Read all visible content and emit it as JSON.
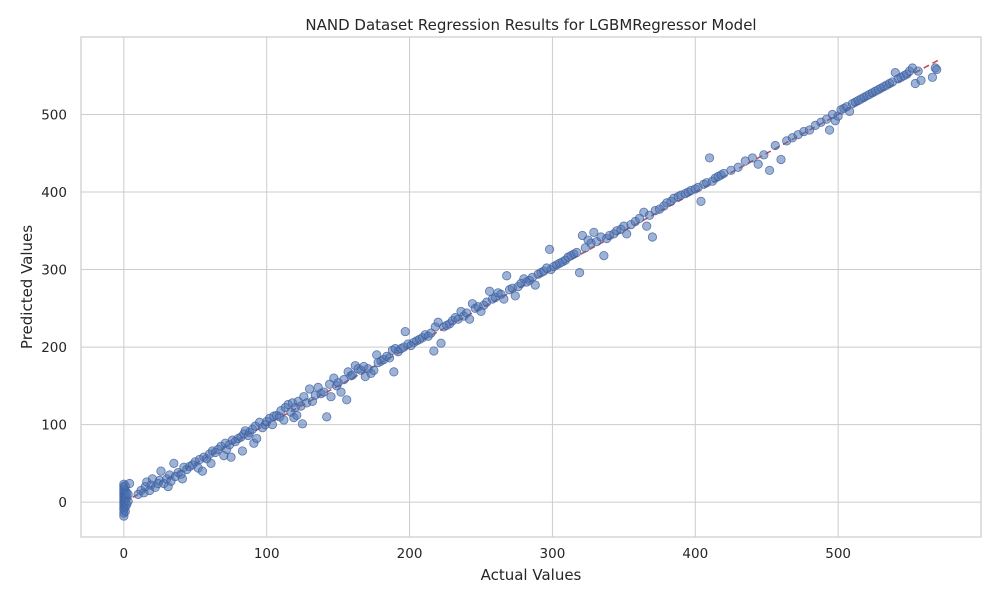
{
  "chart_data": {
    "type": "scatter",
    "title": "NAND Dataset Regression Results for LGBMRegressor Model",
    "xlabel": "Actual Values",
    "ylabel": "Predicted Values",
    "xlim": [
      -30,
      600
    ],
    "ylim": [
      -45,
      600
    ],
    "xticks": [
      0,
      100,
      200,
      300,
      400,
      500
    ],
    "yticks": [
      0,
      100,
      200,
      300,
      400,
      500
    ],
    "grid": true,
    "reference_line": {
      "style": "dashed",
      "color": "#c44e52",
      "from": [
        0,
        0
      ],
      "to": [
        570,
        570
      ]
    },
    "point_color": "#4c72b0",
    "points": [
      [
        0,
        -18
      ],
      [
        0,
        -14
      ],
      [
        0,
        -10
      ],
      [
        0,
        -7
      ],
      [
        0,
        -4
      ],
      [
        0,
        -1
      ],
      [
        0,
        2
      ],
      [
        0,
        5
      ],
      [
        0,
        8
      ],
      [
        0,
        11
      ],
      [
        0,
        14
      ],
      [
        0,
        17
      ],
      [
        0,
        20
      ],
      [
        0,
        23
      ],
      [
        1,
        -12
      ],
      [
        1,
        -6
      ],
      [
        1,
        0
      ],
      [
        1,
        4
      ],
      [
        1,
        9
      ],
      [
        1,
        15
      ],
      [
        1,
        21
      ],
      [
        2,
        -3
      ],
      [
        2,
        6
      ],
      [
        2,
        12
      ],
      [
        3,
        1
      ],
      [
        3,
        10
      ],
      [
        4,
        24
      ],
      [
        10,
        10
      ],
      [
        12,
        15
      ],
      [
        14,
        12
      ],
      [
        15,
        20
      ],
      [
        16,
        26
      ],
      [
        18,
        15
      ],
      [
        19,
        22
      ],
      [
        20,
        30
      ],
      [
        22,
        19
      ],
      [
        24,
        24
      ],
      [
        25,
        28
      ],
      [
        26,
        40
      ],
      [
        28,
        24
      ],
      [
        30,
        30
      ],
      [
        31,
        20
      ],
      [
        32,
        35
      ],
      [
        33,
        27
      ],
      [
        35,
        50
      ],
      [
        36,
        33
      ],
      [
        38,
        38
      ],
      [
        40,
        36
      ],
      [
        41,
        30
      ],
      [
        42,
        45
      ],
      [
        44,
        42
      ],
      [
        46,
        46
      ],
      [
        48,
        48
      ],
      [
        50,
        52
      ],
      [
        52,
        44
      ],
      [
        53,
        55
      ],
      [
        55,
        40
      ],
      [
        56,
        58
      ],
      [
        58,
        56
      ],
      [
        60,
        62
      ],
      [
        61,
        50
      ],
      [
        62,
        66
      ],
      [
        64,
        64
      ],
      [
        66,
        68
      ],
      [
        68,
        72
      ],
      [
        70,
        60
      ],
      [
        71,
        76
      ],
      [
        72,
        68
      ],
      [
        74,
        74
      ],
      [
        75,
        58
      ],
      [
        76,
        80
      ],
      [
        78,
        78
      ],
      [
        80,
        82
      ],
      [
        82,
        84
      ],
      [
        83,
        66
      ],
      [
        84,
        88
      ],
      [
        85,
        92
      ],
      [
        87,
        86
      ],
      [
        88,
        90
      ],
      [
        90,
        94
      ],
      [
        91,
        76
      ],
      [
        92,
        98
      ],
      [
        93,
        82
      ],
      [
        95,
        103
      ],
      [
        97,
        96
      ],
      [
        99,
        100
      ],
      [
        100,
        104
      ],
      [
        102,
        108
      ],
      [
        104,
        100
      ],
      [
        105,
        111
      ],
      [
        107,
        112
      ],
      [
        109,
        110
      ],
      [
        110,
        118
      ],
      [
        112,
        106
      ],
      [
        113,
        122
      ],
      [
        115,
        126
      ],
      [
        117,
        116
      ],
      [
        118,
        128
      ],
      [
        119,
        109
      ],
      [
        120,
        122
      ],
      [
        121,
        112
      ],
      [
        122,
        130
      ],
      [
        124,
        124
      ],
      [
        125,
        101
      ],
      [
        126,
        136
      ],
      [
        128,
        128
      ],
      [
        130,
        146
      ],
      [
        132,
        130
      ],
      [
        134,
        138
      ],
      [
        136,
        148
      ],
      [
        138,
        140
      ],
      [
        140,
        142
      ],
      [
        142,
        110
      ],
      [
        144,
        152
      ],
      [
        145,
        136
      ],
      [
        147,
        160
      ],
      [
        149,
        150
      ],
      [
        150,
        154
      ],
      [
        152,
        142
      ],
      [
        154,
        158
      ],
      [
        156,
        132
      ],
      [
        157,
        168
      ],
      [
        159,
        163
      ],
      [
        160,
        164
      ],
      [
        162,
        176
      ],
      [
        164,
        172
      ],
      [
        166,
        170
      ],
      [
        168,
        175
      ],
      [
        169,
        162
      ],
      [
        171,
        172
      ],
      [
        173,
        166
      ],
      [
        175,
        170
      ],
      [
        177,
        190
      ],
      [
        178,
        180
      ],
      [
        180,
        182
      ],
      [
        182,
        184
      ],
      [
        184,
        188
      ],
      [
        186,
        186
      ],
      [
        188,
        196
      ],
      [
        189,
        168
      ],
      [
        190,
        198
      ],
      [
        192,
        194
      ],
      [
        194,
        198
      ],
      [
        196,
        200
      ],
      [
        197,
        220
      ],
      [
        199,
        204
      ],
      [
        201,
        202
      ],
      [
        203,
        206
      ],
      [
        205,
        208
      ],
      [
        207,
        210
      ],
      [
        209,
        212
      ],
      [
        211,
        216
      ],
      [
        213,
        214
      ],
      [
        215,
        218
      ],
      [
        217,
        195
      ],
      [
        218,
        226
      ],
      [
        220,
        232
      ],
      [
        222,
        205
      ],
      [
        224,
        226
      ],
      [
        226,
        228
      ],
      [
        228,
        230
      ],
      [
        230,
        234
      ],
      [
        232,
        238
      ],
      [
        234,
        236
      ],
      [
        236,
        246
      ],
      [
        238,
        240
      ],
      [
        240,
        244
      ],
      [
        242,
        236
      ],
      [
        244,
        256
      ],
      [
        246,
        250
      ],
      [
        248,
        252
      ],
      [
        250,
        246
      ],
      [
        252,
        254
      ],
      [
        254,
        258
      ],
      [
        256,
        272
      ],
      [
        258,
        262
      ],
      [
        260,
        264
      ],
      [
        262,
        270
      ],
      [
        264,
        268
      ],
      [
        266,
        262
      ],
      [
        268,
        292
      ],
      [
        270,
        274
      ],
      [
        272,
        276
      ],
      [
        274,
        266
      ],
      [
        276,
        278
      ],
      [
        278,
        282
      ],
      [
        280,
        288
      ],
      [
        282,
        284
      ],
      [
        284,
        286
      ],
      [
        286,
        290
      ],
      [
        288,
        280
      ],
      [
        290,
        294
      ],
      [
        292,
        296
      ],
      [
        294,
        298
      ],
      [
        296,
        302
      ],
      [
        298,
        326
      ],
      [
        299,
        300
      ],
      [
        301,
        304
      ],
      [
        303,
        306
      ],
      [
        305,
        308
      ],
      [
        307,
        310
      ],
      [
        309,
        312
      ],
      [
        311,
        316
      ],
      [
        313,
        318
      ],
      [
        315,
        320
      ],
      [
        317,
        322
      ],
      [
        319,
        296
      ],
      [
        321,
        344
      ],
      [
        323,
        328
      ],
      [
        325,
        338
      ],
      [
        327,
        334
      ],
      [
        329,
        348
      ],
      [
        331,
        336
      ],
      [
        334,
        342
      ],
      [
        336,
        318
      ],
      [
        338,
        340
      ],
      [
        340,
        344
      ],
      [
        343,
        346
      ],
      [
        345,
        350
      ],
      [
        348,
        352
      ],
      [
        350,
        356
      ],
      [
        352,
        346
      ],
      [
        355,
        358
      ],
      [
        358,
        362
      ],
      [
        361,
        366
      ],
      [
        364,
        374
      ],
      [
        366,
        356
      ],
      [
        368,
        370
      ],
      [
        370,
        342
      ],
      [
        372,
        376
      ],
      [
        375,
        378
      ],
      [
        378,
        382
      ],
      [
        380,
        386
      ],
      [
        383,
        388
      ],
      [
        385,
        392
      ],
      [
        388,
        394
      ],
      [
        390,
        396
      ],
      [
        393,
        398
      ],
      [
        395,
        400
      ],
      [
        397,
        402
      ],
      [
        400,
        404
      ],
      [
        402,
        406
      ],
      [
        404,
        388
      ],
      [
        406,
        410
      ],
      [
        408,
        412
      ],
      [
        410,
        444
      ],
      [
        412,
        414
      ],
      [
        414,
        418
      ],
      [
        416,
        420
      ],
      [
        418,
        422
      ],
      [
        420,
        424
      ],
      [
        425,
        428
      ],
      [
        430,
        432
      ],
      [
        435,
        440
      ],
      [
        440,
        444
      ],
      [
        444,
        436
      ],
      [
        448,
        448
      ],
      [
        452,
        428
      ],
      [
        456,
        460
      ],
      [
        460,
        442
      ],
      [
        464,
        466
      ],
      [
        468,
        470
      ],
      [
        472,
        474
      ],
      [
        476,
        478
      ],
      [
        480,
        480
      ],
      [
        484,
        486
      ],
      [
        488,
        490
      ],
      [
        492,
        494
      ],
      [
        494,
        480
      ],
      [
        496,
        500
      ],
      [
        498,
        492
      ],
      [
        500,
        498
      ],
      [
        502,
        506
      ],
      [
        504,
        508
      ],
      [
        506,
        510
      ],
      [
        508,
        504
      ],
      [
        510,
        514
      ],
      [
        512,
        516
      ],
      [
        514,
        518
      ],
      [
        516,
        520
      ],
      [
        518,
        522
      ],
      [
        520,
        524
      ],
      [
        522,
        526
      ],
      [
        524,
        528
      ],
      [
        526,
        530
      ],
      [
        528,
        532
      ],
      [
        530,
        534
      ],
      [
        532,
        536
      ],
      [
        534,
        538
      ],
      [
        536,
        540
      ],
      [
        538,
        542
      ],
      [
        540,
        554
      ],
      [
        542,
        546
      ],
      [
        544,
        548
      ],
      [
        546,
        550
      ],
      [
        548,
        552
      ],
      [
        550,
        556
      ],
      [
        552,
        560
      ],
      [
        554,
        540
      ],
      [
        556,
        556
      ],
      [
        558,
        544
      ],
      [
        566,
        548
      ],
      [
        568,
        560
      ],
      [
        569,
        558
      ]
    ]
  }
}
